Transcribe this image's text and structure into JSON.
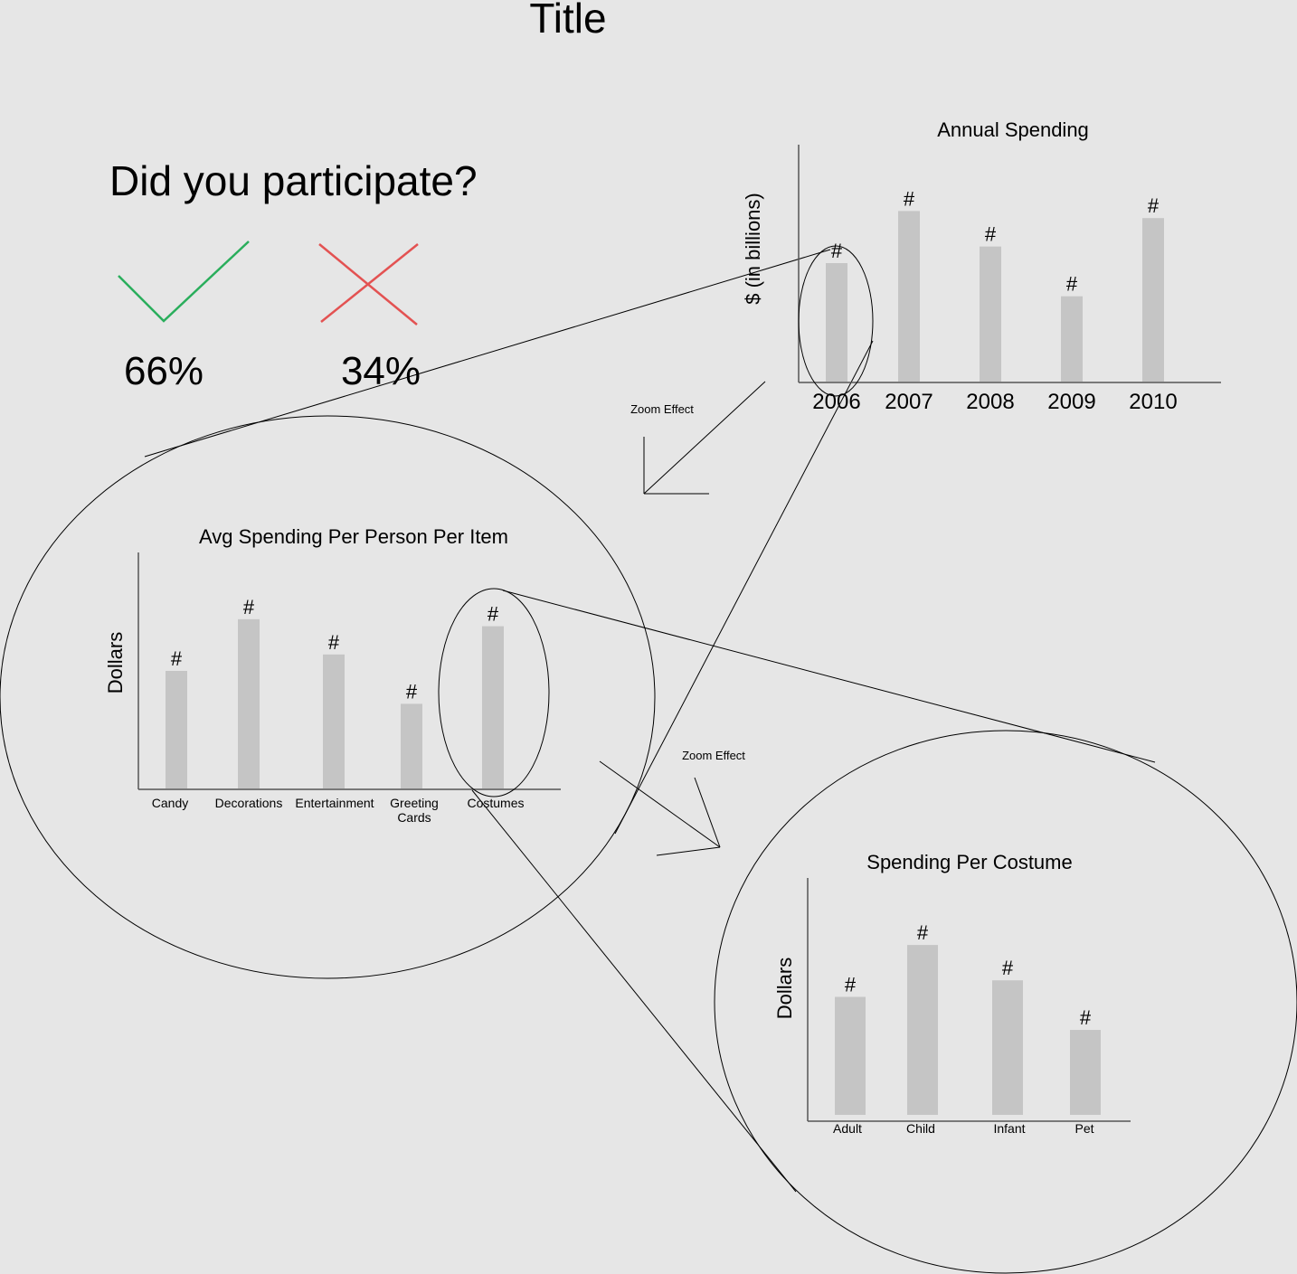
{
  "page": {
    "title": "Title",
    "question": "Did you participate?",
    "yes_icon": "check-icon",
    "no_icon": "cross-icon",
    "yes_percent": "66%",
    "no_percent": "34%",
    "zoom_label_1": "Zoom Effect",
    "zoom_label_2": "Zoom Effect"
  },
  "colors": {
    "background": "#e6e6e6",
    "bar": "#c5c5c5",
    "yes": "#2aae5c",
    "no": "#e35252",
    "line": "#000000"
  },
  "chart_data": [
    {
      "type": "bar",
      "title": "Annual Spending",
      "ylabel": "$ (in billions)",
      "categories": [
        "2006",
        "2007",
        "2008",
        "2009",
        "2010"
      ],
      "values": [
        0.5,
        0.72,
        0.57,
        0.36,
        0.69
      ],
      "value_labels": [
        "#",
        "#",
        "#",
        "#",
        "#"
      ],
      "grid": false
    },
    {
      "type": "bar",
      "title": "Avg Spending Per Person Per Item",
      "ylabel": "Dollars",
      "categories": [
        "Candy",
        "Decorations",
        "Entertainment",
        "Greeting Cards",
        "Costumes"
      ],
      "values": [
        0.5,
        0.72,
        0.57,
        0.36,
        0.69
      ],
      "value_labels": [
        "#",
        "#",
        "#",
        "#",
        "#"
      ],
      "grid": false
    },
    {
      "type": "bar",
      "title": "Spending Per Costume",
      "ylabel": "Dollars",
      "categories": [
        "Adult",
        "Child",
        "Infant",
        "Pet"
      ],
      "values": [
        0.5,
        0.72,
        0.57,
        0.36
      ],
      "value_labels": [
        "#",
        "#",
        "#",
        "#"
      ],
      "grid": false
    }
  ]
}
